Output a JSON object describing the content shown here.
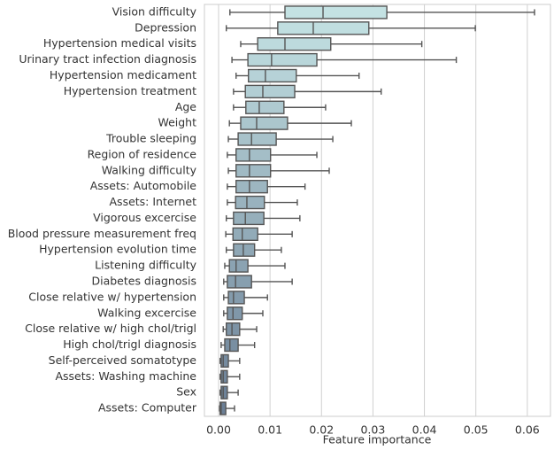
{
  "chart_data": {
    "type": "box",
    "xlabel": "Feature importance",
    "categories": [
      "Vision difficulty",
      "Depression",
      "Hypertension medical visits",
      "Urinary tract infection diagnosis",
      "Hypertension medicament",
      "Hypertension treatment",
      "Age",
      "Weight",
      "Trouble sleeping",
      "Region of residence",
      "Walking difficulty",
      "Assets: Automobile",
      "Assets: Internet",
      "Vigorous excercise",
      "Blood pressure measurement freq",
      "Hypertension evolution time",
      "Listening difficulty",
      "Diabetes diagnosis",
      "Close relative w/ hypertension",
      "Walking excercise",
      "Close relative w/ high chol/trigl",
      "High chol/trigl diagnosis",
      "Self-perceived somatotype",
      "Assets: Washing machine",
      "Sex",
      "Assets: Computer"
    ],
    "whislo": [
      0.0022,
      0.0015,
      0.0043,
      0.0026,
      0.0034,
      0.0029,
      0.0029,
      0.0021,
      0.0019,
      0.0017,
      0.0019,
      0.0017,
      0.0017,
      0.0015,
      0.0014,
      0.0015,
      0.0012,
      0.001,
      0.001,
      0.001,
      0.0009,
      0.0005,
      0.0003,
      0.0003,
      0.0003,
      0.0002
    ],
    "q1": [
      0.0129,
      0.0115,
      0.0076,
      0.0057,
      0.0058,
      0.0052,
      0.0053,
      0.0043,
      0.0038,
      0.0034,
      0.0034,
      0.0034,
      0.0033,
      0.0029,
      0.0028,
      0.0029,
      0.0021,
      0.0017,
      0.0019,
      0.0017,
      0.0015,
      0.0012,
      0.0005,
      0.0005,
      0.0005,
      0.0003
    ],
    "median": [
      0.0203,
      0.0184,
      0.0129,
      0.0103,
      0.0091,
      0.0086,
      0.0079,
      0.0074,
      0.0064,
      0.006,
      0.006,
      0.006,
      0.0055,
      0.0052,
      0.0046,
      0.0048,
      0.0034,
      0.0033,
      0.0029,
      0.0028,
      0.0026,
      0.0022,
      0.0009,
      0.0009,
      0.0009,
      0.0005
    ],
    "q3": [
      0.0327,
      0.0292,
      0.0218,
      0.0191,
      0.0151,
      0.0148,
      0.0127,
      0.0134,
      0.0112,
      0.0101,
      0.0101,
      0.0095,
      0.0089,
      0.0088,
      0.0076,
      0.007,
      0.0057,
      0.0064,
      0.005,
      0.0046,
      0.0041,
      0.0038,
      0.0019,
      0.0017,
      0.0017,
      0.0014
    ],
    "whishi": [
      0.0614,
      0.0499,
      0.0395,
      0.0462,
      0.0273,
      0.0316,
      0.0208,
      0.0258,
      0.0222,
      0.0191,
      0.0215,
      0.0168,
      0.0153,
      0.0158,
      0.0143,
      0.0122,
      0.0129,
      0.0143,
      0.0095,
      0.0086,
      0.0074,
      0.007,
      0.0041,
      0.0041,
      0.0038,
      0.0031
    ],
    "colors": [
      "#c4e2e3",
      "#c0dee0",
      "#bddadd",
      "#b9d6da",
      "#b6d2d7",
      "#b2ced4",
      "#afcad1",
      "#abc6cd",
      "#a8c2ca",
      "#a4bec7",
      "#a0bac4",
      "#9db6c1",
      "#99b2be",
      "#96afbb",
      "#92abb8",
      "#8fa7b5",
      "#8ba3b2",
      "#879faf",
      "#849bac",
      "#8097a9",
      "#7d93a5",
      "#798fa2",
      "#768b9f",
      "#72879c",
      "#6e8399",
      "#6b7f96"
    ],
    "xlim": [
      -0.00275,
      0.0645
    ],
    "xticks": [
      {
        "value": 0,
        "label": "0.00"
      },
      0.01,
      0.02,
      0.03,
      0.04,
      0.05,
      0.06
    ],
    "grid": true
  }
}
